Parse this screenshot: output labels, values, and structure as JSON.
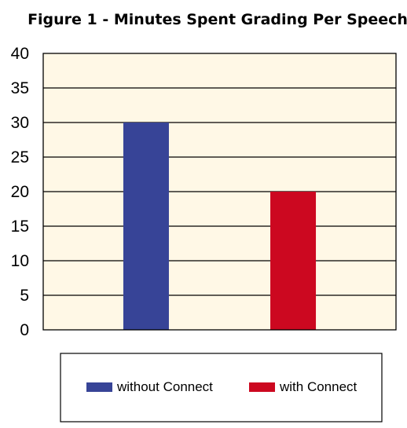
{
  "chart_data": {
    "type": "bar",
    "title": "Figure 1 - Minutes Spent Grading Per Speech",
    "xlabel": "",
    "ylabel": "",
    "ylim": [
      0,
      40
    ],
    "yticks": [
      0,
      5,
      10,
      15,
      20,
      25,
      30,
      35,
      40
    ],
    "grid": true,
    "legend_placement": "bottom",
    "background_color": "#fff8e6",
    "series": [
      {
        "name": "without Connect",
        "value": 30,
        "color": "#374497"
      },
      {
        "name": "with Connect",
        "value": 20,
        "color": "#cc0820"
      }
    ]
  }
}
